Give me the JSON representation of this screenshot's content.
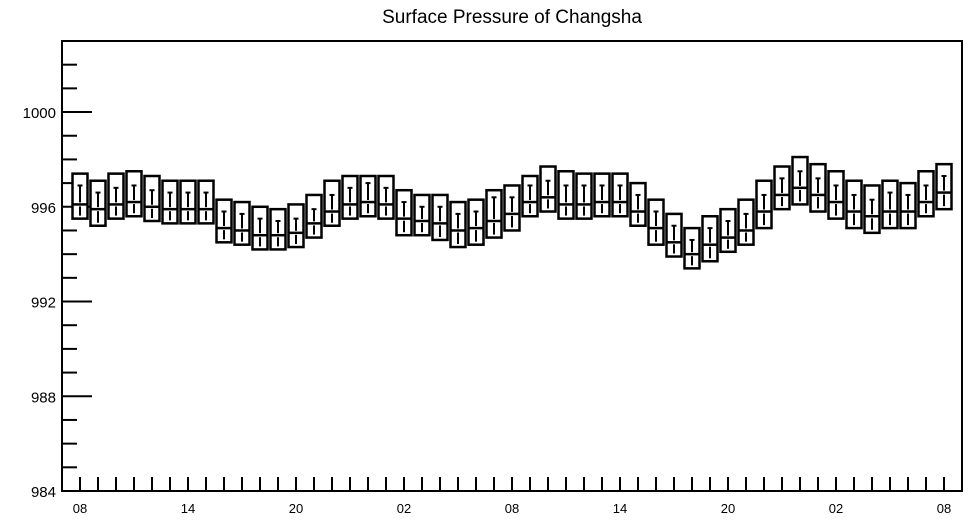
{
  "chart_data": {
    "type": "box",
    "title": "Surface Pressure of Changsha",
    "xlabel": "",
    "ylabel": "",
    "ylim": [
      984,
      1003
    ],
    "yticks": [
      984,
      988,
      992,
      996,
      1000
    ],
    "xticks": [
      {
        "index": 0,
        "label": "08"
      },
      {
        "index": 6,
        "label": "14"
      },
      {
        "index": 12,
        "label": "20"
      },
      {
        "index": 18,
        "label": "02"
      },
      {
        "index": 24,
        "label": "08"
      },
      {
        "index": 30,
        "label": "14"
      },
      {
        "index": 36,
        "label": "20"
      },
      {
        "index": 42,
        "label": "02"
      },
      {
        "index": 48,
        "label": "08"
      }
    ],
    "grid": false,
    "boxes": [
      {
        "x": 0,
        "max": 997.4,
        "q3": 996.9,
        "median": 996.1,
        "q1": 995.5,
        "min": 995.5
      },
      {
        "x": 1,
        "max": 997.1,
        "q3": 996.6,
        "median": 995.9,
        "q1": 995.2,
        "min": 995.2
      },
      {
        "x": 2,
        "max": 997.4,
        "q3": 996.8,
        "median": 996.1,
        "q1": 995.5,
        "min": 995.5
      },
      {
        "x": 3,
        "max": 997.5,
        "q3": 996.9,
        "median": 996.2,
        "q1": 995.6,
        "min": 995.6
      },
      {
        "x": 4,
        "max": 997.3,
        "q3": 996.7,
        "median": 996.0,
        "q1": 995.4,
        "min": 995.4
      },
      {
        "x": 5,
        "max": 997.1,
        "q3": 996.6,
        "median": 995.9,
        "q1": 995.3,
        "min": 995.3
      },
      {
        "x": 6,
        "max": 997.1,
        "q3": 996.6,
        "median": 995.9,
        "q1": 995.3,
        "min": 995.3
      },
      {
        "x": 7,
        "max": 997.1,
        "q3": 996.6,
        "median": 995.9,
        "q1": 995.3,
        "min": 995.3
      },
      {
        "x": 8,
        "max": 996.3,
        "q3": 995.8,
        "median": 995.1,
        "q1": 994.5,
        "min": 994.5
      },
      {
        "x": 9,
        "max": 996.2,
        "q3": 995.7,
        "median": 995.0,
        "q1": 994.4,
        "min": 994.4
      },
      {
        "x": 10,
        "max": 996.0,
        "q3": 995.5,
        "median": 994.8,
        "q1": 994.2,
        "min": 994.2
      },
      {
        "x": 11,
        "max": 995.9,
        "q3": 995.4,
        "median": 994.8,
        "q1": 994.2,
        "min": 994.2
      },
      {
        "x": 12,
        "max": 996.1,
        "q3": 995.5,
        "median": 994.9,
        "q1": 994.3,
        "min": 994.3
      },
      {
        "x": 13,
        "max": 996.5,
        "q3": 995.9,
        "median": 995.3,
        "q1": 994.7,
        "min": 994.7
      },
      {
        "x": 14,
        "max": 997.1,
        "q3": 996.5,
        "median": 995.8,
        "q1": 995.2,
        "min": 995.2
      },
      {
        "x": 15,
        "max": 997.3,
        "q3": 996.8,
        "median": 996.1,
        "q1": 995.5,
        "min": 995.5
      },
      {
        "x": 16,
        "max": 997.3,
        "q3": 997.0,
        "median": 996.2,
        "q1": 995.6,
        "min": 995.6
      },
      {
        "x": 17,
        "max": 997.3,
        "q3": 996.8,
        "median": 996.1,
        "q1": 995.5,
        "min": 995.5
      },
      {
        "x": 18,
        "max": 996.7,
        "q3": 996.2,
        "median": 995.5,
        "q1": 994.8,
        "min": 994.8
      },
      {
        "x": 19,
        "max": 996.5,
        "q3": 996.0,
        "median": 995.4,
        "q1": 994.8,
        "min": 994.8
      },
      {
        "x": 20,
        "max": 996.5,
        "q3": 996.0,
        "median": 995.3,
        "q1": 994.6,
        "min": 994.6
      },
      {
        "x": 21,
        "max": 996.2,
        "q3": 995.7,
        "median": 995.0,
        "q1": 994.3,
        "min": 994.3
      },
      {
        "x": 22,
        "max": 996.3,
        "q3": 995.8,
        "median": 995.1,
        "q1": 994.4,
        "min": 994.4
      },
      {
        "x": 23,
        "max": 996.7,
        "q3": 996.4,
        "median": 995.4,
        "q1": 994.7,
        "min": 994.7
      },
      {
        "x": 24,
        "max": 996.9,
        "q3": 996.4,
        "median": 995.7,
        "q1": 995.0,
        "min": 995.0
      },
      {
        "x": 25,
        "max": 997.3,
        "q3": 996.9,
        "median": 996.2,
        "q1": 995.6,
        "min": 995.6
      },
      {
        "x": 26,
        "max": 997.7,
        "q3": 997.1,
        "median": 996.4,
        "q1": 995.8,
        "min": 995.8
      },
      {
        "x": 27,
        "max": 997.5,
        "q3": 996.9,
        "median": 996.1,
        "q1": 995.5,
        "min": 995.5
      },
      {
        "x": 28,
        "max": 997.4,
        "q3": 996.9,
        "median": 996.1,
        "q1": 995.5,
        "min": 995.5
      },
      {
        "x": 29,
        "max": 997.4,
        "q3": 996.9,
        "median": 996.2,
        "q1": 995.6,
        "min": 995.6
      },
      {
        "x": 30,
        "max": 997.4,
        "q3": 996.9,
        "median": 996.2,
        "q1": 995.6,
        "min": 995.6
      },
      {
        "x": 31,
        "max": 997.0,
        "q3": 996.5,
        "median": 995.8,
        "q1": 995.2,
        "min": 995.2
      },
      {
        "x": 32,
        "max": 996.3,
        "q3": 995.8,
        "median": 995.1,
        "q1": 994.4,
        "min": 994.4
      },
      {
        "x": 33,
        "max": 995.7,
        "q3": 995.2,
        "median": 994.5,
        "q1": 993.9,
        "min": 993.9
      },
      {
        "x": 34,
        "max": 995.1,
        "q3": 994.6,
        "median": 994.0,
        "q1": 993.4,
        "min": 993.4
      },
      {
        "x": 35,
        "max": 995.6,
        "q3": 995.1,
        "median": 994.4,
        "q1": 993.7,
        "min": 993.7
      },
      {
        "x": 36,
        "max": 995.9,
        "q3": 995.4,
        "median": 994.7,
        "q1": 994.1,
        "min": 994.1
      },
      {
        "x": 37,
        "max": 996.3,
        "q3": 995.7,
        "median": 995.0,
        "q1": 994.4,
        "min": 994.4
      },
      {
        "x": 38,
        "max": 997.1,
        "q3": 996.5,
        "median": 995.8,
        "q1": 995.1,
        "min": 995.1
      },
      {
        "x": 39,
        "max": 997.7,
        "q3": 997.2,
        "median": 996.5,
        "q1": 995.9,
        "min": 995.9
      },
      {
        "x": 40,
        "max": 998.1,
        "q3": 997.5,
        "median": 996.8,
        "q1": 996.1,
        "min": 996.1
      },
      {
        "x": 41,
        "max": 997.8,
        "q3": 997.2,
        "median": 996.5,
        "q1": 995.8,
        "min": 995.8
      },
      {
        "x": 42,
        "max": 997.5,
        "q3": 996.9,
        "median": 996.2,
        "q1": 995.5,
        "min": 995.5
      },
      {
        "x": 43,
        "max": 997.1,
        "q3": 996.5,
        "median": 995.8,
        "q1": 995.1,
        "min": 995.1
      },
      {
        "x": 44,
        "max": 996.9,
        "q3": 996.3,
        "median": 995.6,
        "q1": 994.9,
        "min": 994.9
      },
      {
        "x": 45,
        "max": 997.1,
        "q3": 996.6,
        "median": 995.8,
        "q1": 995.1,
        "min": 995.1
      },
      {
        "x": 46,
        "max": 997.0,
        "q3": 996.5,
        "median": 995.8,
        "q1": 995.1,
        "min": 995.1
      },
      {
        "x": 47,
        "max": 997.5,
        "q3": 996.9,
        "median": 996.2,
        "q1": 995.6,
        "min": 995.6
      },
      {
        "x": 48,
        "max": 997.8,
        "q3": 997.3,
        "median": 996.6,
        "q1": 995.9,
        "min": 995.9
      }
    ]
  }
}
